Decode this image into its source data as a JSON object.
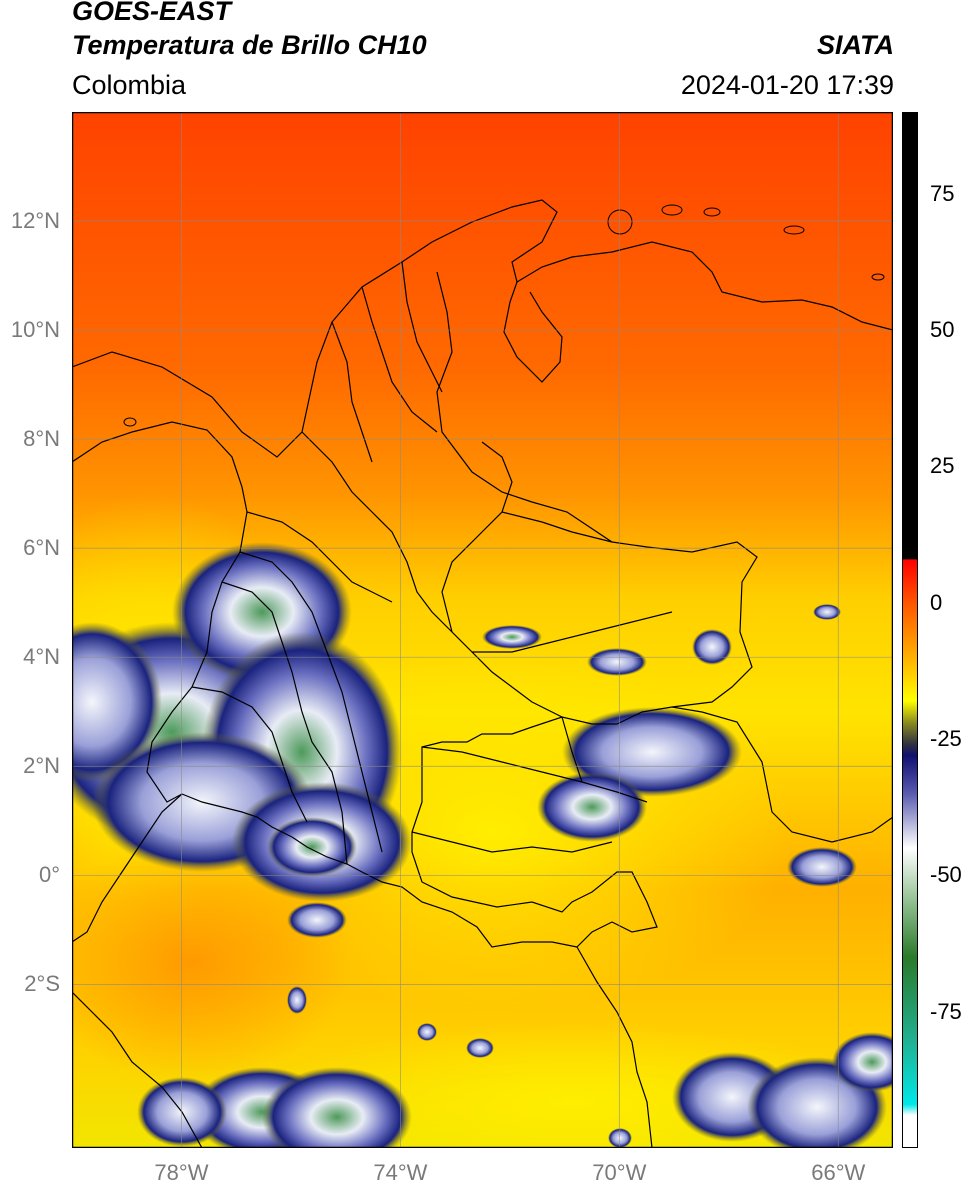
{
  "header": {
    "satellite": "GOES-EAST",
    "product": "Temperatura de Brillo CH10",
    "brand": "SIATA",
    "region": "Colombia",
    "datetime": "2024-01-20 17:39"
  },
  "map": {
    "extent": {
      "lon_min": -80,
      "lon_max": -65,
      "lat_min": -5,
      "lat_max": 14
    },
    "lat_ticks": [
      {
        "value": 12,
        "label": "12°N"
      },
      {
        "value": 10,
        "label": "10°N"
      },
      {
        "value": 8,
        "label": "8°N"
      },
      {
        "value": 6,
        "label": "6°N"
      },
      {
        "value": 4,
        "label": "4°N"
      },
      {
        "value": 2,
        "label": "2°N"
      },
      {
        "value": 0,
        "label": "0°"
      },
      {
        "value": -2,
        "label": "2°S"
      }
    ],
    "lon_ticks": [
      {
        "value": -78,
        "label": "78°W"
      },
      {
        "value": -74,
        "label": "74°W"
      },
      {
        "value": -70,
        "label": "70°W"
      },
      {
        "value": -66,
        "label": "66°W"
      }
    ],
    "grid": true,
    "colors": {
      "warm": "#ff4a00",
      "mid": "#ff9a00",
      "yellow": "#ffea00",
      "navy": "#1c2a8a",
      "white": "#f2f4fa",
      "green": "#3a8a4a"
    }
  },
  "colorbar": {
    "range": [
      -100,
      90
    ],
    "ticks": [
      {
        "value": 75,
        "label": "75"
      },
      {
        "value": 50,
        "label": "50"
      },
      {
        "value": 25,
        "label": "25"
      },
      {
        "value": 0,
        "label": "0"
      },
      {
        "value": -25,
        "label": "-25"
      },
      {
        "value": -50,
        "label": "-50"
      },
      {
        "value": -75,
        "label": "-75"
      }
    ],
    "stops": [
      {
        "value": 90,
        "color": "#000000"
      },
      {
        "value": 8,
        "color": "#000000"
      },
      {
        "value": 7.9,
        "color": "#ff0000"
      },
      {
        "value": 0,
        "color": "#ff5500"
      },
      {
        "value": -10,
        "color": "#ffb000"
      },
      {
        "value": -18,
        "color": "#ffff00"
      },
      {
        "value": -22,
        "color": "#8a8a20"
      },
      {
        "value": -26,
        "color": "#303040"
      },
      {
        "value": -28,
        "color": "#101070"
      },
      {
        "value": -35,
        "color": "#5a5ab0"
      },
      {
        "value": -45,
        "color": "#ffffff"
      },
      {
        "value": -55,
        "color": "#8fbf8f"
      },
      {
        "value": -65,
        "color": "#2a7a2a"
      },
      {
        "value": -80,
        "color": "#20b090"
      },
      {
        "value": -92,
        "color": "#00e8e8"
      },
      {
        "value": -94,
        "color": "#ffffff"
      },
      {
        "value": -100,
        "color": "#ffffff"
      }
    ]
  }
}
